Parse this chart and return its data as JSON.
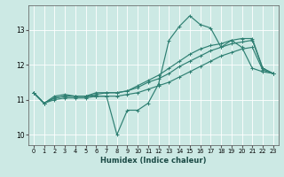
{
  "x_values": [
    0,
    1,
    2,
    3,
    4,
    5,
    6,
    7,
    8,
    9,
    10,
    11,
    12,
    13,
    14,
    15,
    16,
    17,
    18,
    19,
    20,
    21,
    22,
    23
  ],
  "line1": [
    11.2,
    10.9,
    11.1,
    11.15,
    11.1,
    11.1,
    11.1,
    11.1,
    10.0,
    10.7,
    10.7,
    10.9,
    11.45,
    12.7,
    13.1,
    13.4,
    13.15,
    13.05,
    12.5,
    12.7,
    12.5,
    11.9,
    11.8,
    11.75
  ],
  "line2": [
    11.2,
    10.9,
    11.05,
    11.1,
    11.1,
    11.1,
    11.2,
    11.2,
    11.2,
    11.25,
    11.4,
    11.55,
    11.7,
    11.9,
    12.1,
    12.3,
    12.45,
    12.55,
    12.6,
    12.7,
    12.75,
    12.75,
    11.9,
    11.75
  ],
  "line3": [
    11.2,
    10.9,
    11.05,
    11.1,
    11.1,
    11.1,
    11.15,
    11.2,
    11.2,
    11.25,
    11.35,
    11.5,
    11.6,
    11.75,
    11.95,
    12.1,
    12.25,
    12.4,
    12.5,
    12.6,
    12.65,
    12.7,
    11.9,
    11.75
  ],
  "line4": [
    11.2,
    10.9,
    11.0,
    11.05,
    11.05,
    11.05,
    11.1,
    11.1,
    11.1,
    11.15,
    11.2,
    11.3,
    11.4,
    11.5,
    11.65,
    11.8,
    11.95,
    12.1,
    12.25,
    12.35,
    12.45,
    12.5,
    11.85,
    11.75
  ],
  "line_color": "#2e7f72",
  "bg_color": "#cce9e4",
  "grid_color": "#b0d8d2",
  "xlabel": "Humidex (Indice chaleur)",
  "yticks": [
    10,
    11,
    12,
    13
  ],
  "xticks": [
    0,
    1,
    2,
    3,
    4,
    5,
    6,
    7,
    8,
    9,
    10,
    11,
    12,
    13,
    14,
    15,
    16,
    17,
    18,
    19,
    20,
    21,
    22,
    23
  ],
  "ylim": [
    9.7,
    13.7
  ],
  "xlim": [
    -0.5,
    23.5
  ]
}
